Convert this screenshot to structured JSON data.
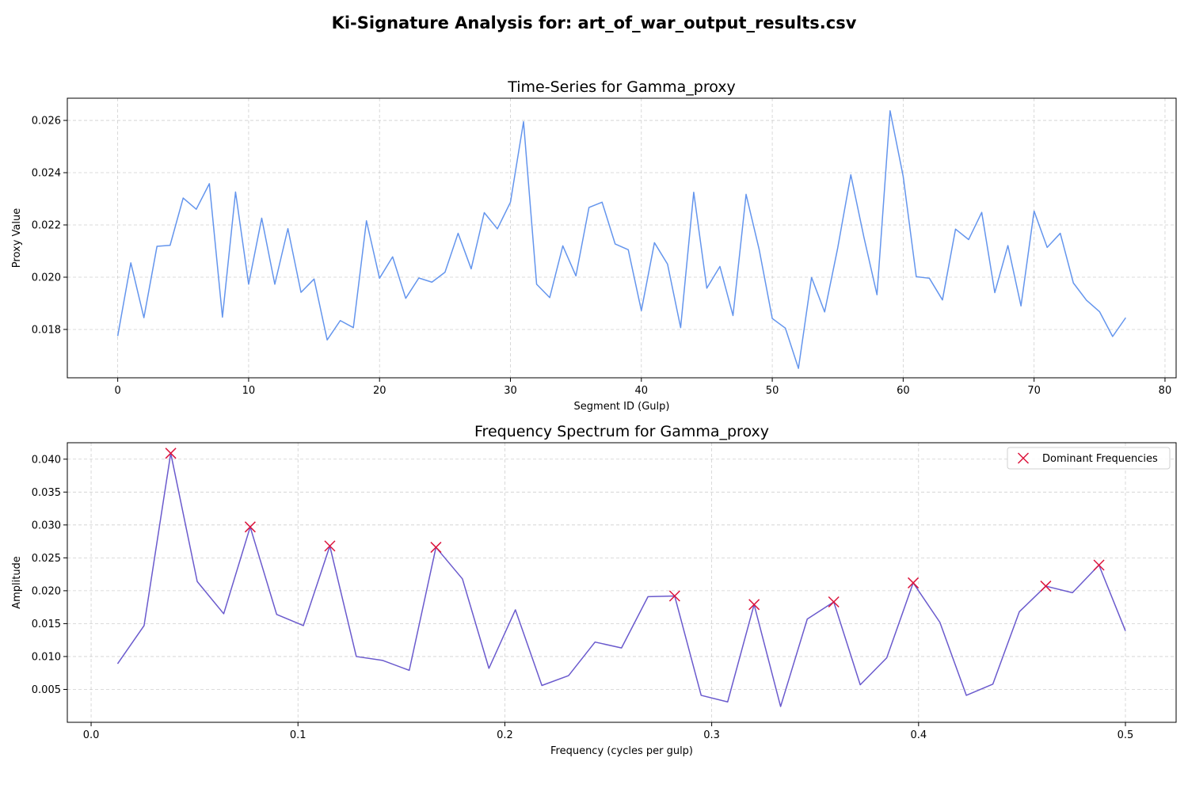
{
  "figure": {
    "suptitle": "Ki-Signature Analysis for: art_of_war_output_results.csv"
  },
  "chart_data": [
    {
      "type": "line",
      "title": "Time-Series for Gamma_proxy",
      "xlabel": "Segment ID (Gulp)",
      "ylabel": "Proxy Value",
      "xlim": [
        -3.85,
        80.85
      ],
      "ylim": [
        0.01615,
        0.02685
      ],
      "xticks": [
        0,
        10,
        20,
        30,
        40,
        50,
        60,
        70,
        80
      ],
      "xtick_labels": [
        "0",
        "10",
        "20",
        "30",
        "40",
        "50",
        "60",
        "70",
        "80"
      ],
      "yticks": [
        0.018,
        0.02,
        0.022,
        0.024,
        0.026
      ],
      "ytick_labels": [
        "0.018",
        "0.020",
        "0.022",
        "0.024",
        "0.026"
      ],
      "grid": true,
      "color": "#6495ed",
      "series": [
        {
          "x": [
            0,
            1,
            2,
            3,
            4,
            5,
            6,
            7,
            8,
            9,
            10,
            11,
            12,
            13,
            14,
            15,
            16,
            17,
            18,
            19,
            20,
            21,
            22,
            23,
            24,
            25,
            26,
            27,
            28,
            29,
            30,
            31,
            32,
            33,
            34,
            35,
            36,
            37,
            38,
            39,
            40,
            41,
            42,
            43,
            44,
            45,
            46,
            47,
            48,
            49,
            50,
            51,
            52,
            53,
            54,
            55,
            56,
            57,
            58,
            59,
            60,
            61,
            62,
            63,
            64,
            65,
            66,
            67,
            68,
            69,
            70,
            71,
            72,
            73,
            74,
            75,
            76,
            77
          ],
          "y": [
            0.01775,
            0.02055,
            0.01845,
            0.02118,
            0.02122,
            0.02303,
            0.0226,
            0.02358,
            0.01847,
            0.02326,
            0.01973,
            0.02226,
            0.01973,
            0.02186,
            0.01942,
            0.01993,
            0.0176,
            0.01834,
            0.01807,
            0.02216,
            0.01996,
            0.02078,
            0.01919,
            0.01997,
            0.01981,
            0.02019,
            0.02168,
            0.02032,
            0.02247,
            0.02185,
            0.02287,
            0.02595,
            0.01973,
            0.01922,
            0.0212,
            0.02005,
            0.02267,
            0.02287,
            0.02127,
            0.02105,
            0.01872,
            0.02132,
            0.0205,
            0.01807,
            0.02325,
            0.01958,
            0.02041,
            0.01853,
            0.02317,
            0.02106,
            0.01842,
            0.01805,
            0.01651,
            0.01999,
            0.01867,
            0.02112,
            0.02392,
            0.02153,
            0.01933,
            0.02637,
            0.02386,
            0.02002,
            0.01996,
            0.01913,
            0.02184,
            0.02144,
            0.02248,
            0.01941,
            0.02121,
            0.0189,
            0.02253,
            0.02114,
            0.02168,
            0.01978,
            0.01912,
            0.01868,
            0.01773,
            0.01845
          ]
        }
      ]
    },
    {
      "type": "line",
      "title": "Frequency Spectrum for Gamma_proxy",
      "xlabel": "Frequency (cycles per gulp)",
      "ylabel": "Amplitude",
      "xlim": [
        -0.0115,
        0.5245
      ],
      "ylim": [
        0.0,
        0.0425
      ],
      "xticks": [
        0.0,
        0.1,
        0.2,
        0.3,
        0.4,
        0.5
      ],
      "xtick_labels": [
        "0.0",
        "0.1",
        "0.2",
        "0.3",
        "0.4",
        "0.5"
      ],
      "yticks": [
        0.005,
        0.01,
        0.015,
        0.02,
        0.025,
        0.03,
        0.035,
        0.04
      ],
      "ytick_labels": [
        "0.005",
        "0.010",
        "0.015",
        "0.020",
        "0.025",
        "0.030",
        "0.035",
        "0.040"
      ],
      "grid": true,
      "color": "#6a5acd",
      "marker_color": "#dc143c",
      "legend": {
        "position": "top-right",
        "entries": [
          "Dominant Frequencies"
        ]
      },
      "series": [
        {
          "x": [
            0.0128,
            0.0256,
            0.0385,
            0.0513,
            0.0641,
            0.0769,
            0.0897,
            0.1026,
            0.1154,
            0.1282,
            0.141,
            0.1538,
            0.1667,
            0.1795,
            0.1923,
            0.2051,
            0.2179,
            0.2308,
            0.2436,
            0.2564,
            0.2692,
            0.2821,
            0.2949,
            0.3077,
            0.3205,
            0.3333,
            0.3462,
            0.359,
            0.3718,
            0.3846,
            0.3974,
            0.4103,
            0.4231,
            0.4359,
            0.4487,
            0.4615,
            0.4744,
            0.4872,
            0.5
          ],
          "y": [
            0.0089,
            0.0147,
            0.0409,
            0.0214,
            0.0165,
            0.0297,
            0.0164,
            0.0147,
            0.0268,
            0.01,
            0.0094,
            0.0079,
            0.0266,
            0.0218,
            0.0082,
            0.0171,
            0.0056,
            0.0071,
            0.0122,
            0.0113,
            0.0191,
            0.0192,
            0.0041,
            0.0031,
            0.0179,
            0.0024,
            0.0157,
            0.0183,
            0.0057,
            0.0098,
            0.0212,
            0.0152,
            0.0041,
            0.0058,
            0.0168,
            0.0207,
            0.0197,
            0.0239,
            0.0139
          ]
        }
      ],
      "dominant_frequencies": {
        "name": "Dominant Frequencies",
        "x": [
          0.0385,
          0.0769,
          0.1154,
          0.1667,
          0.2821,
          0.3205,
          0.359,
          0.3974,
          0.4615,
          0.4872
        ],
        "y": [
          0.0409,
          0.0297,
          0.0268,
          0.0266,
          0.0192,
          0.0179,
          0.0183,
          0.0212,
          0.0207,
          0.0239
        ]
      }
    }
  ]
}
